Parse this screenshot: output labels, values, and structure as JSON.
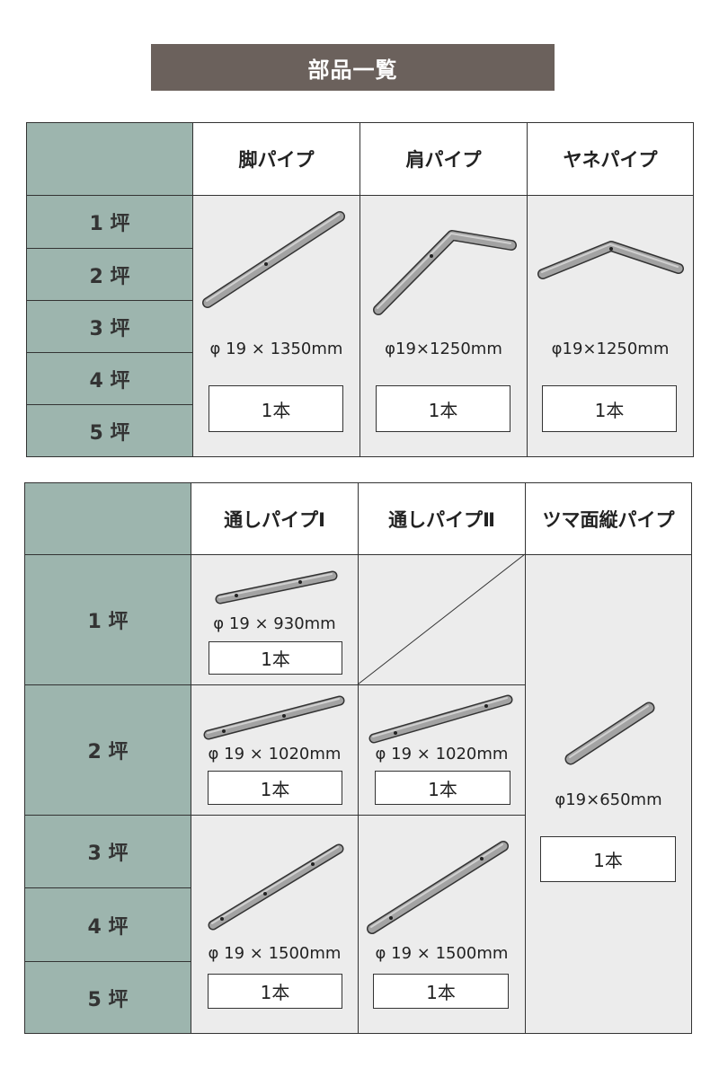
{
  "title": "部品一覧",
  "table1": {
    "headers": [
      "脚パイプ",
      "肩パイプ",
      "ヤネパイプ"
    ],
    "rows": [
      "1 坪",
      "2 坪",
      "3 坪",
      "4 坪",
      "5 坪"
    ],
    "parts": [
      {
        "spec": "φ 19 × 1350mm",
        "qty": "1本",
        "icon": "leg-pipe-icon"
      },
      {
        "spec": "φ19×1250mm",
        "qty": "1本",
        "icon": "shoulder-pipe-icon"
      },
      {
        "spec": "φ19×1250mm",
        "qty": "1本",
        "icon": "roof-pipe-icon"
      }
    ]
  },
  "table2": {
    "headers": [
      "通しパイプⅠ",
      "通しパイプⅡ",
      "ツマ面縦パイプ"
    ],
    "rows": [
      "1 坪",
      "2 坪",
      "3 坪",
      "4 坪",
      "5 坪"
    ],
    "pipe1": [
      {
        "spec": "φ 19 × 930mm",
        "qty": "1本"
      },
      {
        "spec": "φ 19 × 1020mm",
        "qty": "1本"
      },
      {
        "spec": "φ 19 × 1500mm",
        "qty": "1本"
      }
    ],
    "pipe2": [
      {
        "spec": "φ 19 × 1020mm",
        "qty": "1本"
      },
      {
        "spec": "φ 19 × 1500mm",
        "qty": "1本"
      }
    ],
    "gable": {
      "spec": "φ19×650mm",
      "qty": "1本"
    }
  },
  "colors": {
    "title_bg": "#6b615c",
    "row_header": "#9db5ae",
    "cell_bg": "#ececec"
  }
}
